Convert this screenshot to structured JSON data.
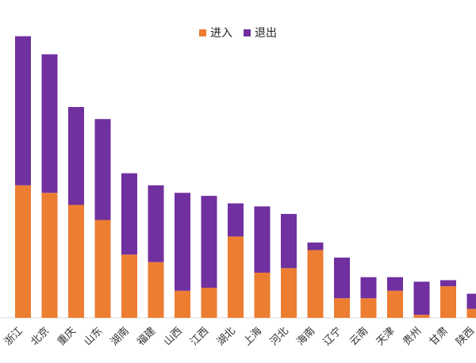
{
  "chart_data": {
    "type": "bar",
    "stacked": true,
    "title": "",
    "xlabel": "",
    "ylabel": "",
    "legend_position": "top",
    "grid": false,
    "categories": [
      "浙江",
      "北京",
      "重庆",
      "山东",
      "湖南",
      "福建",
      "山西",
      "江西",
      "湖北",
      "上海",
      "河北",
      "海南",
      "辽宁",
      "云南",
      "天津",
      "贵州",
      "甘肃",
      "陕西"
    ],
    "series": [
      {
        "name": "进入",
        "color": "#ED7D31",
        "values": [
          88,
          83,
          75,
          65,
          42,
          37,
          18,
          20,
          54,
          30,
          33,
          45,
          13,
          13,
          18,
          2,
          21,
          6
        ]
      },
      {
        "name": "退出",
        "color": "#7030A0",
        "values": [
          99,
          92,
          65,
          67,
          54,
          51,
          65,
          61,
          22,
          44,
          36,
          5,
          27,
          14,
          9,
          22,
          4,
          10
        ]
      }
    ],
    "ylim": [
      0,
      200
    ]
  }
}
